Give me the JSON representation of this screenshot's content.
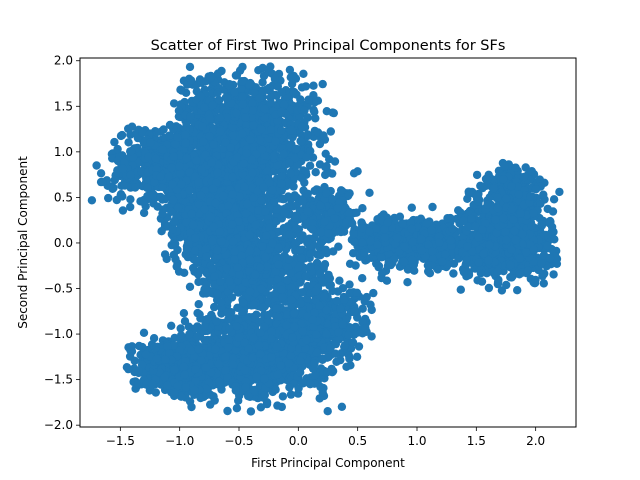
{
  "chart_data": {
    "type": "scatter",
    "title": "Scatter of First Two Principal Components for SFs",
    "xlabel": "First Principal Component",
    "ylabel": "Second Principal Component",
    "xlim": [
      -1.84,
      2.34
    ],
    "ylim": [
      -2.02,
      2.03
    ],
    "xticks": [
      -1.5,
      -1.0,
      -0.5,
      0.0,
      0.5,
      1.0,
      1.5,
      2.0
    ],
    "xtick_labels": [
      "−1.5",
      "−1.0",
      "−0.5",
      "0.0",
      "0.5",
      "1.0",
      "1.5",
      "2.0"
    ],
    "yticks": [
      -2.0,
      -1.5,
      -1.0,
      -0.5,
      0.0,
      0.5,
      1.0,
      1.5,
      2.0
    ],
    "ytick_labels": [
      "−2.0",
      "−1.5",
      "−1.0",
      "−0.5",
      "0.0",
      "0.5",
      "1.0",
      "1.5",
      "2.0"
    ],
    "grid": false,
    "legend": "none",
    "marker_color": "#1f77b4",
    "point_clusters": [
      {
        "name": "upper-left lobe",
        "x_range": [
          -1.75,
          0.5
        ],
        "y_range": [
          -0.3,
          1.95
        ]
      },
      {
        "name": "lower-left lobe",
        "x_range": [
          -1.45,
          0.7
        ],
        "y_range": [
          -1.85,
          -0.3
        ]
      },
      {
        "name": "central bridge",
        "x_range": [
          0.5,
          1.4
        ],
        "y_range": [
          -0.45,
          0.45
        ]
      },
      {
        "name": "right lobe",
        "x_range": [
          1.4,
          2.2
        ],
        "y_range": [
          -0.55,
          0.9
        ]
      }
    ]
  }
}
